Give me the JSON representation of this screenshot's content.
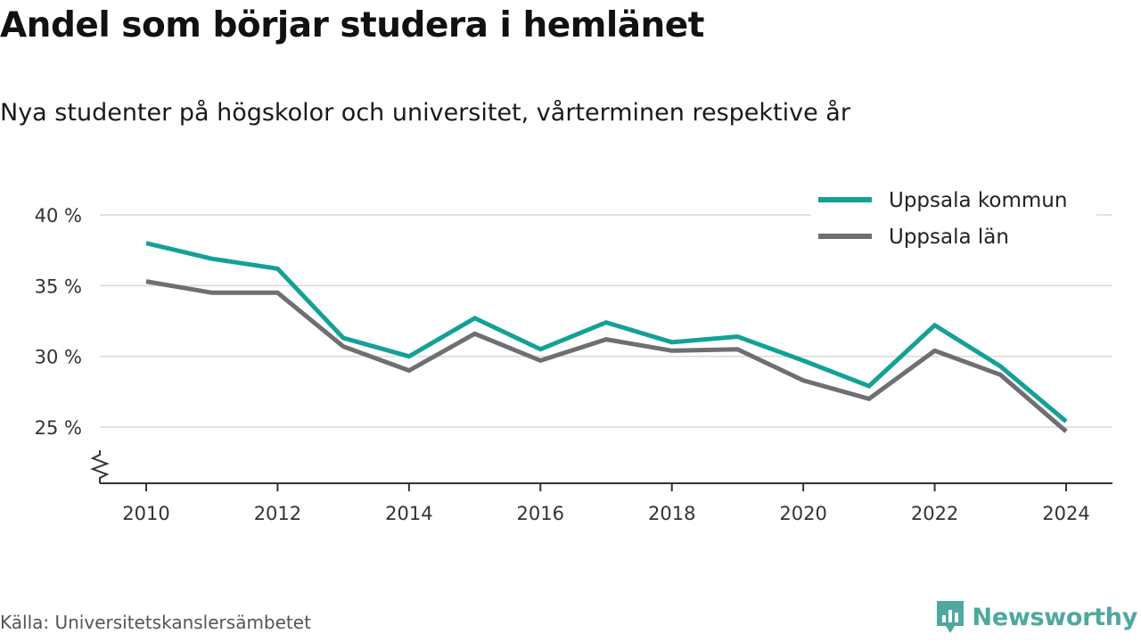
{
  "title": "Andel som börjar studera i hemlänet",
  "subtitle": "Nya studenter på högskolor och universitet, vårterminen respektive år",
  "source": "Källa: Universitetskanslersämbetet",
  "brand": "Newsworthy",
  "colors": {
    "kommun": "#13a197",
    "lan": "#6e6e73",
    "grid": "#d9d9d9",
    "axis": "#333333",
    "brand": "#4ea8a0"
  },
  "chart_data": {
    "type": "line",
    "x": [
      2010,
      2011,
      2012,
      2013,
      2014,
      2015,
      2016,
      2017,
      2018,
      2019,
      2020,
      2021,
      2022,
      2023,
      2024
    ],
    "series": [
      {
        "name": "Uppsala kommun",
        "color": "#13a197",
        "values": [
          38.0,
          36.9,
          36.2,
          31.3,
          30.0,
          32.7,
          30.5,
          32.4,
          31.0,
          31.4,
          29.7,
          27.9,
          32.2,
          29.3,
          25.4
        ]
      },
      {
        "name": "Uppsala län",
        "color": "#6e6e73",
        "values": [
          35.3,
          34.5,
          34.5,
          30.7,
          29.0,
          31.6,
          29.7,
          31.2,
          30.4,
          30.5,
          28.3,
          27.0,
          30.4,
          28.7,
          24.7
        ]
      }
    ],
    "y_ticks": [
      25,
      30,
      35,
      40
    ],
    "y_tick_labels": [
      "25 %",
      "30 %",
      "35 %",
      "40 %"
    ],
    "x_ticks": [
      2010,
      2012,
      2014,
      2016,
      2018,
      2020,
      2022,
      2024
    ],
    "x_tick_labels": [
      "2010",
      "2012",
      "2014",
      "2016",
      "2018",
      "2020",
      "2022",
      "2024"
    ],
    "ylim": [
      21,
      40
    ],
    "xlim": [
      2009.3,
      2024.7
    ],
    "xlabel": "",
    "ylabel": "",
    "grid": true,
    "axis_break": true,
    "legend_position": "top-right"
  }
}
